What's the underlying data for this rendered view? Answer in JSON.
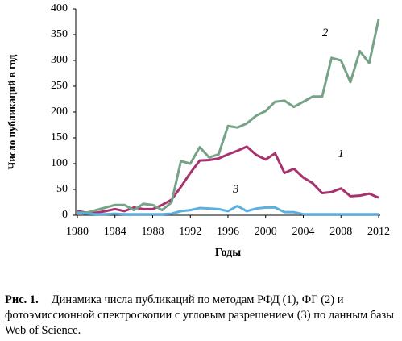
{
  "chart_data": {
    "type": "line",
    "x_label": "Годы",
    "y_label": "Число публикаций в год",
    "x": [
      1980,
      1981,
      1982,
      1983,
      1984,
      1985,
      1986,
      1987,
      1988,
      1989,
      1990,
      1991,
      1992,
      1993,
      1994,
      1995,
      1996,
      1997,
      1998,
      1999,
      2000,
      2001,
      2002,
      2003,
      2004,
      2005,
      2006,
      2007,
      2008,
      2009,
      2010,
      2011,
      2012
    ],
    "series": [
      {
        "name": "1",
        "color": "#a8326e",
        "values": [
          8,
          5,
          5,
          8,
          12,
          8,
          15,
          12,
          12,
          20,
          30,
          55,
          82,
          106,
          107,
          110,
          118,
          125,
          133,
          117,
          108,
          120,
          82,
          90,
          73,
          62,
          43,
          45,
          52,
          37,
          38,
          42,
          34
        ]
      },
      {
        "name": "2",
        "color": "#76a286",
        "values": [
          5,
          5,
          10,
          15,
          20,
          20,
          10,
          22,
          20,
          10,
          25,
          105,
          100,
          132,
          112,
          118,
          173,
          170,
          178,
          193,
          202,
          220,
          222,
          210,
          220,
          230,
          230,
          305,
          300,
          258,
          318,
          295,
          380
        ]
      },
      {
        "name": "3",
        "color": "#5cb0e0",
        "values": [
          5,
          3,
          2,
          2,
          3,
          2,
          2,
          2,
          2,
          2,
          3,
          8,
          10,
          14,
          13,
          12,
          8,
          18,
          8,
          13,
          15,
          15,
          6,
          6,
          2,
          2,
          2,
          2,
          2,
          2,
          2,
          2,
          2
        ]
      }
    ],
    "xlim": [
      1980,
      2012
    ],
    "xticks": [
      1980,
      1984,
      1988,
      1992,
      1996,
      2000,
      2004,
      2008,
      2012
    ],
    "ylim": [
      0,
      400
    ],
    "yticks": [
      0,
      50,
      100,
      150,
      200,
      250,
      300,
      350,
      400
    ]
  },
  "caption": {
    "label": "Рис. 1.",
    "text": "Динамика числа публикаций по методам РФД (1), ФГ (2) и фотоэмиссионной спектроскопии с угловым разрешением (3) по данным базы Web of Science."
  }
}
